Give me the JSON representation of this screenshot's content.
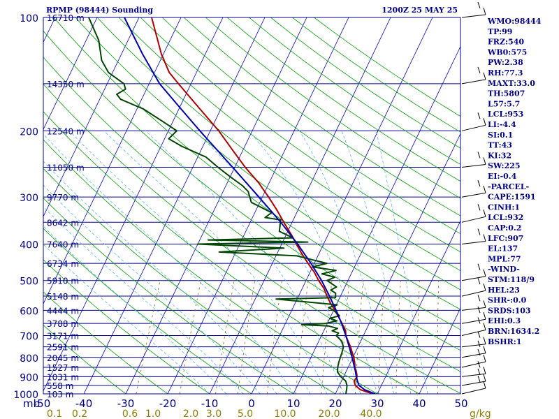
{
  "chart_data": {
    "type": "skew-t log-p sounding",
    "title_left": "RPMP (98444) Sounding",
    "title_right": "1200Z 25 MAY 25",
    "pressure_label": "mb",
    "mixing_ratio_unit": "g/kg",
    "pressure_range_mb": [
      1000,
      100
    ],
    "temperature_range_c": [
      -50,
      50
    ],
    "pressure_ticks": [
      100,
      200,
      300,
      400,
      500,
      600,
      700,
      800,
      900,
      1000
    ],
    "temperature_ticks": [
      "-50",
      "-40",
      "-30",
      "-20",
      "-10",
      "0",
      "10",
      "20",
      "30",
      "40",
      "50"
    ],
    "mixing_ratio_ticks": [
      {
        "label": "0.1",
        "x": -47
      },
      {
        "label": "0.2",
        "x": -41
      },
      {
        "label": "0.6",
        "x": -29
      },
      {
        "label": "1.0",
        "x": -23.5
      },
      {
        "label": "2.0",
        "x": -14.5
      },
      {
        "label": "3.0",
        "x": -9
      },
      {
        "label": "5.0",
        "x": -1.5
      },
      {
        "label": "10.0",
        "x": 8
      },
      {
        "label": "20.0",
        "x": 18.5
      },
      {
        "label": "40.0",
        "x": 28.5
      }
    ],
    "height_labels": [
      {
        "label": "16710 m",
        "p": 100
      },
      {
        "label": "14350 m",
        "p": 150
      },
      {
        "label": "12540 m",
        "p": 200
      },
      {
        "label": "11050 m",
        "p": 250
      },
      {
        "label": "9770 m",
        "p": 300
      },
      {
        "label": "8642 m",
        "p": 350
      },
      {
        "label": "7640 m",
        "p": 400
      },
      {
        "label": "6734 m",
        "p": 450
      },
      {
        "label": "5910 m",
        "p": 500
      },
      {
        "label": "5148 m",
        "p": 550
      },
      {
        "label": "4444 m",
        "p": 600
      },
      {
        "label": "3788 m",
        "p": 650
      },
      {
        "label": "3171 m",
        "p": 700
      },
      {
        "label": "2591 m",
        "p": 750
      },
      {
        "label": "2045 m",
        "p": 800
      },
      {
        "label": "1527 m",
        "p": 850
      },
      {
        "label": "1031 m",
        "p": 900
      },
      {
        "label": "558 m",
        "p": 950
      },
      {
        "label": "103 m",
        "p": 1000
      }
    ],
    "series": [
      {
        "role": "temperature",
        "color": "#b00000",
        "points": [
          [
            1000,
            29.5
          ],
          [
            990,
            27.5
          ],
          [
            975,
            25.5
          ],
          [
            950,
            23.8
          ],
          [
            925,
            23.0
          ],
          [
            900,
            23.2
          ],
          [
            875,
            22.5
          ],
          [
            850,
            21.6
          ],
          [
            825,
            21.0
          ],
          [
            800,
            20.2
          ],
          [
            775,
            19.2
          ],
          [
            750,
            18.2
          ],
          [
            725,
            17.0
          ],
          [
            700,
            15.8
          ],
          [
            680,
            15.2
          ],
          [
            650,
            13.5
          ],
          [
            600,
            10.3
          ],
          [
            575,
            8.5
          ],
          [
            550,
            6.8
          ],
          [
            525,
            5.2
          ],
          [
            500,
            3.0
          ],
          [
            475,
            1.0
          ],
          [
            450,
            -1.5
          ],
          [
            425,
            -4.0
          ],
          [
            400,
            -6.5
          ],
          [
            380,
            -8.5
          ],
          [
            350,
            -12.0
          ],
          [
            325,
            -15.0
          ],
          [
            300,
            -18.5
          ],
          [
            275,
            -22.5
          ],
          [
            250,
            -27.5
          ],
          [
            225,
            -32.5
          ],
          [
            200,
            -38.0
          ],
          [
            175,
            -45.0
          ],
          [
            150,
            -53.0
          ],
          [
            140,
            -56.5
          ],
          [
            125,
            -60.5
          ],
          [
            100,
            -67.0
          ]
        ]
      },
      {
        "role": "dewpoint",
        "color": "#004500",
        "points": [
          [
            1000,
            22.5
          ],
          [
            975,
            22.2
          ],
          [
            950,
            21.8
          ],
          [
            925,
            21.0
          ],
          [
            900,
            19.3
          ],
          [
            875,
            18.0
          ],
          [
            850,
            17.5
          ],
          [
            825,
            17.2
          ],
          [
            800,
            17.0
          ],
          [
            775,
            16.8
          ],
          [
            750,
            16.5
          ],
          [
            725,
            15.5
          ],
          [
            700,
            13.5
          ],
          [
            690,
            13.8
          ],
          [
            680,
            12.0
          ],
          [
            670,
            13.0
          ],
          [
            660,
            10.5
          ],
          [
            655,
            4.0
          ],
          [
            650,
            9.5
          ],
          [
            640,
            12.0
          ],
          [
            630,
            10.0
          ],
          [
            620,
            12.0
          ],
          [
            600,
            10.0
          ],
          [
            590,
            8.5
          ],
          [
            580,
            10.2
          ],
          [
            560,
            -5.0
          ],
          [
            555,
            9.0
          ],
          [
            540,
            8.5
          ],
          [
            530,
            7.0
          ],
          [
            520,
            8.0
          ],
          [
            500,
            5.0
          ],
          [
            490,
            6.5
          ],
          [
            480,
            3.0
          ],
          [
            470,
            6.0
          ],
          [
            460,
            0.0
          ],
          [
            450,
            3.0
          ],
          [
            440,
            -1.0
          ],
          [
            430,
            -5.0
          ],
          [
            420,
            -24.0
          ],
          [
            410,
            -9.0
          ],
          [
            400,
            -30.0
          ],
          [
            395,
            -4.0
          ],
          [
            390,
            -28.0
          ],
          [
            385,
            -8.0
          ],
          [
            370,
            -12.0
          ],
          [
            345,
            -13.0
          ],
          [
            340,
            -17.0
          ],
          [
            330,
            -16.0
          ],
          [
            310,
            -22.0
          ],
          [
            290,
            -24.0
          ],
          [
            280,
            -26.0
          ],
          [
            265,
            -30.0
          ],
          [
            250,
            -34.0
          ],
          [
            235,
            -38.0
          ],
          [
            220,
            -45.0
          ],
          [
            210,
            -49.0
          ],
          [
            200,
            -48.0
          ],
          [
            190,
            -52.0
          ],
          [
            175,
            -58.5
          ],
          [
            165,
            -65.0
          ],
          [
            160,
            -66.5
          ],
          [
            155,
            -65.0
          ],
          [
            150,
            -66.0
          ],
          [
            140,
            -71.0
          ],
          [
            130,
            -74.0
          ],
          [
            115,
            -77.0
          ],
          [
            100,
            -82.0
          ]
        ]
      },
      {
        "role": "parcel",
        "color": "#0000b0",
        "points": [
          [
            1000,
            29.5
          ],
          [
            975,
            26.5
          ],
          [
            950,
            24.7
          ],
          [
            925,
            23.8
          ],
          [
            900,
            23.0
          ],
          [
            875,
            22.3
          ],
          [
            850,
            21.5
          ],
          [
            800,
            19.8
          ],
          [
            750,
            17.9
          ],
          [
            700,
            15.8
          ],
          [
            650,
            13.4
          ],
          [
            600,
            10.6
          ],
          [
            550,
            7.4
          ],
          [
            500,
            3.7
          ],
          [
            450,
            -0.8
          ],
          [
            400,
            -6.2
          ],
          [
            350,
            -12.7
          ],
          [
            300,
            -20.8
          ],
          [
            250,
            -30.5
          ],
          [
            200,
            -42.5
          ],
          [
            175,
            -49.5
          ],
          [
            150,
            -57.5
          ],
          [
            125,
            -65.0
          ],
          [
            100,
            -73.5
          ]
        ]
      }
    ],
    "wind_barb_pressures": [
      100,
      150,
      200,
      250,
      300,
      350,
      400,
      500,
      550,
      600,
      650,
      700,
      750,
      800,
      850,
      900,
      950,
      1000
    ],
    "indices": [
      "WMO:98444",
      "TP:99",
      "FRZ:540",
      "WB0:575",
      "PW:2.38",
      "RH:77.3",
      "MAXT:33.0",
      "TH:5807",
      "L57:5.7",
      "LCL:953",
      "LI:-4.4",
      "SI:0.1",
      "TT:43",
      "KI:32",
      "SW:225",
      "EI:-0.4",
      "-PARCEL-",
      "CAPE:1591",
      "CINH:1",
      "LCL:932",
      "CAP:0.2",
      "LFC:907",
      "EL:137",
      "MPL:77",
      "-WIND-",
      "STM:118/9",
      "HEL:23",
      "SHR-:0.0",
      "SRDS:103",
      "EHI:0.3",
      "BRN:1634.2",
      "BSHR:1"
    ],
    "colors": {
      "isobar": "#00008b",
      "isotherm": "#0000cd",
      "dry_adiabat": "#00a000",
      "moist_adiabat": "#5ab4e6",
      "mixing_ratio": "#8b6b00",
      "text": "#00008b"
    }
  }
}
